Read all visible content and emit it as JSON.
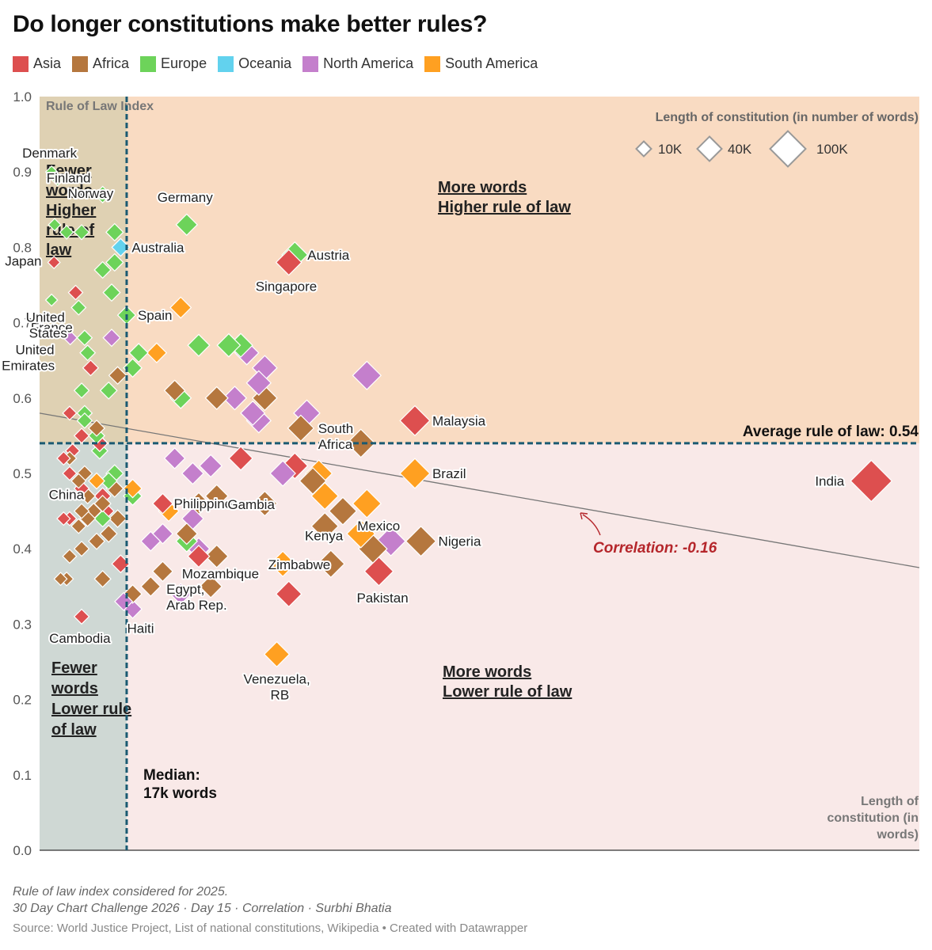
{
  "title": "Do longer constitutions make better rules?",
  "legend": [
    {
      "name": "Asia",
      "color": "#dd4f4f"
    },
    {
      "name": "Africa",
      "color": "#b5773e"
    },
    {
      "name": "Europe",
      "color": "#6dd35a"
    },
    {
      "name": "Oceania",
      "color": "#62d2ee"
    },
    {
      "name": "North America",
      "color": "#c47fcc"
    },
    {
      "name": "South America",
      "color": "#ffa021"
    }
  ],
  "chart_data": {
    "type": "scatter",
    "xlabel": "Length of constitution (in words)",
    "ylabel": "Rule of Law Index",
    "ylim": [
      0,
      1
    ],
    "xlim": [
      2500,
      149000
    ],
    "yticks": [
      "0.0",
      "0.1",
      "0.2",
      "0.3",
      "0.4",
      "0.5",
      "0.6",
      "0.7",
      "0.8",
      "0.9",
      "1.0"
    ],
    "grid": false,
    "median_x": 17000,
    "median_label": [
      "Median:",
      "17k words"
    ],
    "average_y": 0.54,
    "average_label": "Average rule of law: 0.54",
    "correlation_label": "Correlation: -0.16",
    "trend_line": [
      [
        2500,
        0.58
      ],
      [
        149000,
        0.375
      ]
    ],
    "size_legend": {
      "title": "Length of constitution (in number of words)",
      "items": [
        {
          "label": "10K",
          "value": 10000
        },
        {
          "label": "40K",
          "value": 40000
        },
        {
          "label": "100K",
          "value": 100000
        }
      ]
    },
    "quadrants": [
      [
        "Fewer",
        "words,",
        "Higher",
        "rule of",
        "law"
      ],
      [
        "More words",
        "Higher rule of law"
      ],
      [
        "Fewer",
        "words",
        "Lower rule",
        "of law"
      ],
      [
        "More words",
        "Lower rule of law"
      ]
    ],
    "points": [
      {
        "label": "Denmark",
        "region": "Europe",
        "x": 4500,
        "y": 0.9
      },
      {
        "label": "Finland",
        "region": "Europe",
        "x": 5500,
        "y": 0.89
      },
      {
        "label": "Norway",
        "region": "Europe",
        "x": 13000,
        "y": 0.87
      },
      {
        "label": "Germany",
        "region": "Europe",
        "x": 27000,
        "y": 0.83
      },
      {
        "label": "Australia",
        "region": "Oceania",
        "x": 16000,
        "y": 0.8
      },
      {
        "label": "Austria",
        "region": "Europe",
        "x": 45000,
        "y": 0.79
      },
      {
        "label": "Singapore",
        "region": "Asia",
        "x": 44000,
        "y": 0.78
      },
      {
        "label": "Japan",
        "region": "Asia",
        "x": 4900,
        "y": 0.78
      },
      {
        "label": "Spain",
        "region": "Europe",
        "x": 17000,
        "y": 0.71
      },
      {
        "label": "France",
        "region": "Europe",
        "x": 10000,
        "y": 0.68
      },
      {
        "label": "United States",
        "region": "North America",
        "x": 7600,
        "y": 0.68
      },
      {
        "label": "United Arab Emirates",
        "region": "Asia",
        "x": 11000,
        "y": 0.64
      },
      {
        "label": "Malaysia",
        "region": "Asia",
        "x": 65000,
        "y": 0.57
      },
      {
        "label": "South Africa",
        "region": "Africa",
        "x": 56000,
        "y": 0.54
      },
      {
        "label": "Brazil",
        "region": "South America",
        "x": 65000,
        "y": 0.5
      },
      {
        "label": "India",
        "region": "Asia",
        "x": 141000,
        "y": 0.49
      },
      {
        "label": "China",
        "region": "Asia",
        "x": 13000,
        "y": 0.47
      },
      {
        "label": "Philippines",
        "region": "Asia",
        "x": 23000,
        "y": 0.46
      },
      {
        "label": "Gambia",
        "region": "Africa",
        "x": 40000,
        "y": 0.46
      },
      {
        "label": "Mexico",
        "region": "South America",
        "x": 57000,
        "y": 0.46
      },
      {
        "label": "Kenya",
        "region": "Africa",
        "x": 53000,
        "y": 0.45
      },
      {
        "label": "Nigeria",
        "region": "Africa",
        "x": 66000,
        "y": 0.41
      },
      {
        "label": "Zimbabwe",
        "region": "Africa",
        "x": 51000,
        "y": 0.38
      },
      {
        "label": "Mozambique",
        "region": "Africa",
        "x": 32000,
        "y": 0.39
      },
      {
        "label": "Pakistan",
        "region": "Asia",
        "x": 59000,
        "y": 0.37
      },
      {
        "label": "Egypt, Arab Rep.",
        "region": "Africa",
        "x": 31000,
        "y": 0.35
      },
      {
        "label": "Haiti",
        "region": "North America",
        "x": 18000,
        "y": 0.32
      },
      {
        "label": "Cambodia",
        "region": "Asia",
        "x": 9500,
        "y": 0.31
      },
      {
        "label": "Venezuela, RB",
        "region": "South America",
        "x": 42000,
        "y": 0.26
      },
      {
        "label": "",
        "region": "Europe",
        "x": 5000,
        "y": 0.83
      },
      {
        "label": "",
        "region": "Europe",
        "x": 7000,
        "y": 0.82
      },
      {
        "label": "",
        "region": "Europe",
        "x": 9500,
        "y": 0.82
      },
      {
        "label": "",
        "region": "Europe",
        "x": 15000,
        "y": 0.82
      },
      {
        "label": "",
        "region": "Europe",
        "x": 15000,
        "y": 0.78
      },
      {
        "label": "",
        "region": "Europe",
        "x": 13000,
        "y": 0.77
      },
      {
        "label": "",
        "region": "Europe",
        "x": 14500,
        "y": 0.74
      },
      {
        "label": "",
        "region": "Europe",
        "x": 4500,
        "y": 0.73
      },
      {
        "label": "",
        "region": "Europe",
        "x": 9000,
        "y": 0.72
      },
      {
        "label": "",
        "region": "Europe",
        "x": 10500,
        "y": 0.66
      },
      {
        "label": "",
        "region": "Europe",
        "x": 19000,
        "y": 0.66
      },
      {
        "label": "",
        "region": "Europe",
        "x": 18000,
        "y": 0.64
      },
      {
        "label": "",
        "region": "Europe",
        "x": 9500,
        "y": 0.61
      },
      {
        "label": "",
        "region": "Europe",
        "x": 14000,
        "y": 0.61
      },
      {
        "label": "",
        "region": "Europe",
        "x": 29000,
        "y": 0.67
      },
      {
        "label": "",
        "region": "Europe",
        "x": 34000,
        "y": 0.67
      },
      {
        "label": "",
        "region": "Europe",
        "x": 36000,
        "y": 0.67
      },
      {
        "label": "",
        "region": "Europe",
        "x": 26000,
        "y": 0.6
      },
      {
        "label": "",
        "region": "Europe",
        "x": 10000,
        "y": 0.58
      },
      {
        "label": "",
        "region": "Europe",
        "x": 10000,
        "y": 0.57
      },
      {
        "label": "",
        "region": "Europe",
        "x": 12000,
        "y": 0.55
      },
      {
        "label": "",
        "region": "Europe",
        "x": 12500,
        "y": 0.53
      },
      {
        "label": "",
        "region": "Europe",
        "x": 14000,
        "y": 0.49
      },
      {
        "label": "",
        "region": "Europe",
        "x": 15000,
        "y": 0.5
      },
      {
        "label": "",
        "region": "Europe",
        "x": 18000,
        "y": 0.47
      },
      {
        "label": "",
        "region": "Europe",
        "x": 13000,
        "y": 0.44
      },
      {
        "label": "",
        "region": "Europe",
        "x": 27000,
        "y": 0.41
      },
      {
        "label": "",
        "region": "South America",
        "x": 26000,
        "y": 0.72
      },
      {
        "label": "",
        "region": "South America",
        "x": 22000,
        "y": 0.66
      },
      {
        "label": "",
        "region": "South America",
        "x": 12500,
        "y": 0.54
      },
      {
        "label": "",
        "region": "South America",
        "x": 18000,
        "y": 0.48
      },
      {
        "label": "",
        "region": "South America",
        "x": 24000,
        "y": 0.45
      },
      {
        "label": "",
        "region": "South America",
        "x": 12000,
        "y": 0.49
      },
      {
        "label": "",
        "region": "South America",
        "x": 49000,
        "y": 0.5
      },
      {
        "label": "",
        "region": "South America",
        "x": 50000,
        "y": 0.47
      },
      {
        "label": "",
        "region": "South America",
        "x": 56000,
        "y": 0.42
      },
      {
        "label": "",
        "region": "South America",
        "x": 43000,
        "y": 0.38
      },
      {
        "label": "",
        "region": "North America",
        "x": 14500,
        "y": 0.68
      },
      {
        "label": "",
        "region": "North America",
        "x": 37000,
        "y": 0.66
      },
      {
        "label": "",
        "region": "North America",
        "x": 40000,
        "y": 0.64
      },
      {
        "label": "",
        "region": "North America",
        "x": 39000,
        "y": 0.62
      },
      {
        "label": "",
        "region": "North America",
        "x": 35000,
        "y": 0.6
      },
      {
        "label": "",
        "region": "North America",
        "x": 47000,
        "y": 0.58
      },
      {
        "label": "",
        "region": "North America",
        "x": 38000,
        "y": 0.58
      },
      {
        "label": "",
        "region": "North America",
        "x": 39000,
        "y": 0.57
      },
      {
        "label": "",
        "region": "North America",
        "x": 57000,
        "y": 0.63
      },
      {
        "label": "",
        "region": "North America",
        "x": 25000,
        "y": 0.52
      },
      {
        "label": "",
        "region": "North America",
        "x": 28000,
        "y": 0.5
      },
      {
        "label": "",
        "region": "North America",
        "x": 31000,
        "y": 0.51
      },
      {
        "label": "",
        "region": "North America",
        "x": 43000,
        "y": 0.5
      },
      {
        "label": "",
        "region": "North America",
        "x": 23000,
        "y": 0.42
      },
      {
        "label": "",
        "region": "North America",
        "x": 21000,
        "y": 0.41
      },
      {
        "label": "",
        "region": "North America",
        "x": 28000,
        "y": 0.44
      },
      {
        "label": "",
        "region": "North America",
        "x": 61000,
        "y": 0.41
      },
      {
        "label": "",
        "region": "North America",
        "x": 29000,
        "y": 0.4
      },
      {
        "label": "",
        "region": "North America",
        "x": 26000,
        "y": 0.34
      },
      {
        "label": "",
        "region": "North America",
        "x": 16500,
        "y": 0.33
      },
      {
        "label": "",
        "region": "Africa",
        "x": 15500,
        "y": 0.63
      },
      {
        "label": "",
        "region": "Africa",
        "x": 25000,
        "y": 0.61
      },
      {
        "label": "",
        "region": "Africa",
        "x": 32000,
        "y": 0.6
      },
      {
        "label": "",
        "region": "Africa",
        "x": 40000,
        "y": 0.6
      },
      {
        "label": "",
        "region": "Africa",
        "x": 46000,
        "y": 0.56
      },
      {
        "label": "",
        "region": "Africa",
        "x": 12000,
        "y": 0.56
      },
      {
        "label": "",
        "region": "Africa",
        "x": 12500,
        "y": 0.54
      },
      {
        "label": "",
        "region": "Africa",
        "x": 7500,
        "y": 0.52
      },
      {
        "label": "",
        "region": "Africa",
        "x": 10000,
        "y": 0.5
      },
      {
        "label": "",
        "region": "Africa",
        "x": 9000,
        "y": 0.49
      },
      {
        "label": "",
        "region": "Africa",
        "x": 10500,
        "y": 0.47
      },
      {
        "label": "",
        "region": "Africa",
        "x": 15000,
        "y": 0.48
      },
      {
        "label": "",
        "region": "Africa",
        "x": 11500,
        "y": 0.45
      },
      {
        "label": "",
        "region": "Africa",
        "x": 9500,
        "y": 0.45
      },
      {
        "label": "",
        "region": "Africa",
        "x": 13000,
        "y": 0.46
      },
      {
        "label": "",
        "region": "Africa",
        "x": 10500,
        "y": 0.44
      },
      {
        "label": "",
        "region": "Africa",
        "x": 9000,
        "y": 0.43
      },
      {
        "label": "",
        "region": "Africa",
        "x": 15500,
        "y": 0.44
      },
      {
        "label": "",
        "region": "Africa",
        "x": 14000,
        "y": 0.42
      },
      {
        "label": "",
        "region": "Africa",
        "x": 12000,
        "y": 0.41
      },
      {
        "label": "",
        "region": "Africa",
        "x": 9500,
        "y": 0.4
      },
      {
        "label": "",
        "region": "Africa",
        "x": 7500,
        "y": 0.39
      },
      {
        "label": "",
        "region": "Africa",
        "x": 6000,
        "y": 0.36
      },
      {
        "label": "",
        "region": "Africa",
        "x": 7000,
        "y": 0.36
      },
      {
        "label": "",
        "region": "Africa",
        "x": 13000,
        "y": 0.36
      },
      {
        "label": "",
        "region": "Africa",
        "x": 29000,
        "y": 0.46
      },
      {
        "label": "",
        "region": "Africa",
        "x": 32000,
        "y": 0.47
      },
      {
        "label": "",
        "region": "Africa",
        "x": 27000,
        "y": 0.42
      },
      {
        "label": "",
        "region": "Africa",
        "x": 48000,
        "y": 0.49
      },
      {
        "label": "",
        "region": "Africa",
        "x": 50000,
        "y": 0.43
      },
      {
        "label": "",
        "region": "Africa",
        "x": 58000,
        "y": 0.4
      },
      {
        "label": "",
        "region": "Africa",
        "x": 23000,
        "y": 0.37
      },
      {
        "label": "",
        "region": "Africa",
        "x": 21000,
        "y": 0.35
      },
      {
        "label": "",
        "region": "Africa",
        "x": 18000,
        "y": 0.34
      },
      {
        "label": "",
        "region": "Asia",
        "x": 8500,
        "y": 0.74
      },
      {
        "label": "",
        "region": "Asia",
        "x": 7500,
        "y": 0.58
      },
      {
        "label": "",
        "region": "Asia",
        "x": 9500,
        "y": 0.55
      },
      {
        "label": "",
        "region": "Asia",
        "x": 8000,
        "y": 0.53
      },
      {
        "label": "",
        "region": "Asia",
        "x": 12500,
        "y": 0.54
      },
      {
        "label": "",
        "region": "Asia",
        "x": 6500,
        "y": 0.52
      },
      {
        "label": "",
        "region": "Asia",
        "x": 7500,
        "y": 0.5
      },
      {
        "label": "",
        "region": "Asia",
        "x": 9500,
        "y": 0.48
      },
      {
        "label": "",
        "region": "Asia",
        "x": 6500,
        "y": 0.44
      },
      {
        "label": "",
        "region": "Asia",
        "x": 7500,
        "y": 0.44
      },
      {
        "label": "",
        "region": "Asia",
        "x": 13500,
        "y": 0.45
      },
      {
        "label": "",
        "region": "Asia",
        "x": 16000,
        "y": 0.38
      },
      {
        "label": "",
        "region": "Asia",
        "x": 36000,
        "y": 0.52
      },
      {
        "label": "",
        "region": "Asia",
        "x": 45000,
        "y": 0.51
      },
      {
        "label": "",
        "region": "Asia",
        "x": 29000,
        "y": 0.39
      },
      {
        "label": "",
        "region": "Asia",
        "x": 44000,
        "y": 0.34
      }
    ]
  },
  "notes": [
    "Rule of law index considered for 2025.",
    "30 Day Chart Challenge 2026 · Day 15 · Correlation · Surbhi Bhatia"
  ],
  "source": "Source: World Justice Project, List of national constitutions, Wikipedia • Created with Datawrapper"
}
